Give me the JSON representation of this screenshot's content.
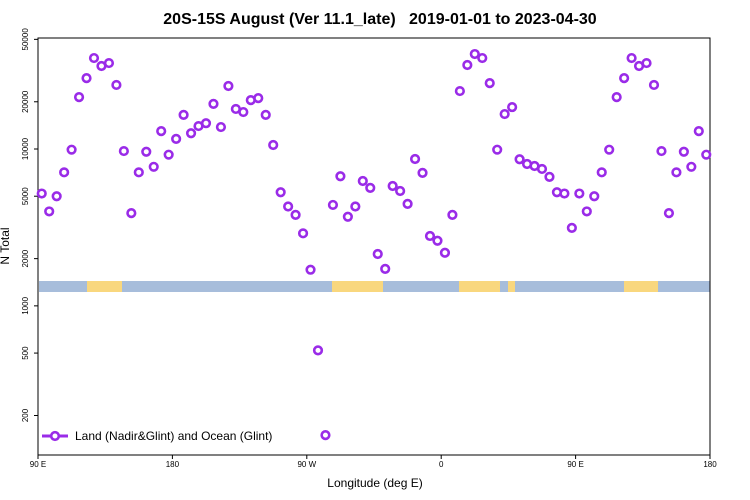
{
  "chart_data": {
    "type": "scatter",
    "title": "20S-15S August (Ver 11.1_late)   2019-01-01 to 2023-04-30",
    "x_label": "Longitude (deg E)",
    "y_label": "N Total",
    "log_y": true,
    "xlim": [
      90,
      540
    ],
    "ylim": [
      112,
      51000
    ],
    "xticks": [
      {
        "value": 90,
        "label": "90 E"
      },
      180,
      {
        "value": 270,
        "label": "90 W"
      },
      {
        "value": 360,
        "label": "0"
      },
      {
        "value": 450,
        "label": "90 E"
      },
      {
        "value": 540,
        "label": "180"
      }
    ],
    "yticks": [
      200,
      500,
      1000,
      2000,
      5000,
      10000,
      20000,
      50000
    ],
    "legend": "bottom-left",
    "series": [
      {
        "name": "Land (Nadir&Glint) and Ocean (Glint)",
        "color": "#9a2be8",
        "x": [
          92.5,
          97.5,
          102.5,
          107.5,
          112.5,
          117.5,
          122.5,
          127.5,
          132.5,
          137.5,
          142.5,
          147.5,
          152.5,
          157.5,
          162.5,
          167.5,
          172.5,
          177.5,
          182.5,
          187.5,
          192.5,
          197.5,
          202.5,
          207.5,
          212.5,
          217.5,
          222.5,
          227.5,
          232.5,
          237.5,
          242.5,
          247.5,
          252.5,
          257.5,
          262.5,
          267.5,
          272.5,
          277.5,
          282.5,
          287.5,
          292.5,
          297.5,
          302.5,
          307.5,
          312.5,
          317.5,
          322.5,
          327.5,
          332.5,
          337.5,
          342.5,
          347.5,
          352.5,
          357.5,
          362.5,
          367.5,
          372.5,
          377.5,
          382.5,
          387.5,
          392.5,
          397.5,
          402.5,
          407.5,
          412.5,
          417.5,
          422.5,
          427.5,
          432.5,
          437.5,
          442.5,
          447.5,
          452.5,
          457.5,
          462.5,
          467.5,
          472.5,
          477.5,
          482.5,
          487.5,
          492.5,
          497.5,
          502.5,
          507.5,
          512.5,
          517.5,
          522.5,
          527.5,
          532.5,
          537.5
        ],
        "values": [
          5200,
          4000,
          5000,
          7100,
          9900,
          21400,
          28300,
          38000,
          33800,
          35300,
          25600,
          9700,
          3900,
          7100,
          9600,
          7700,
          13000,
          9200,
          11600,
          16500,
          12600,
          14000,
          14600,
          19400,
          13800,
          25200,
          18000,
          17200,
          20500,
          21100,
          16500,
          10600,
          5300,
          4300,
          3800,
          2900,
          1700,
          520,
          150,
          4400,
          6700,
          3700,
          4300,
          6250,
          5650,
          2140,
          1720,
          5810,
          5400,
          4470,
          8630,
          7040,
          2790,
          2600,
          2180,
          3800,
          23400,
          34300,
          40300,
          38000,
          26300,
          9900,
          16700,
          18500,
          8600,
          8020,
          7790,
          7460,
          6640,
          5300,
          5200,
          3140,
          5200,
          4000,
          5000,
          7100,
          9900,
          21400,
          28300,
          38000,
          33800,
          35300,
          25600,
          9700,
          3900,
          7100,
          9600,
          7700,
          13000,
          9200
        ]
      }
    ]
  }
}
